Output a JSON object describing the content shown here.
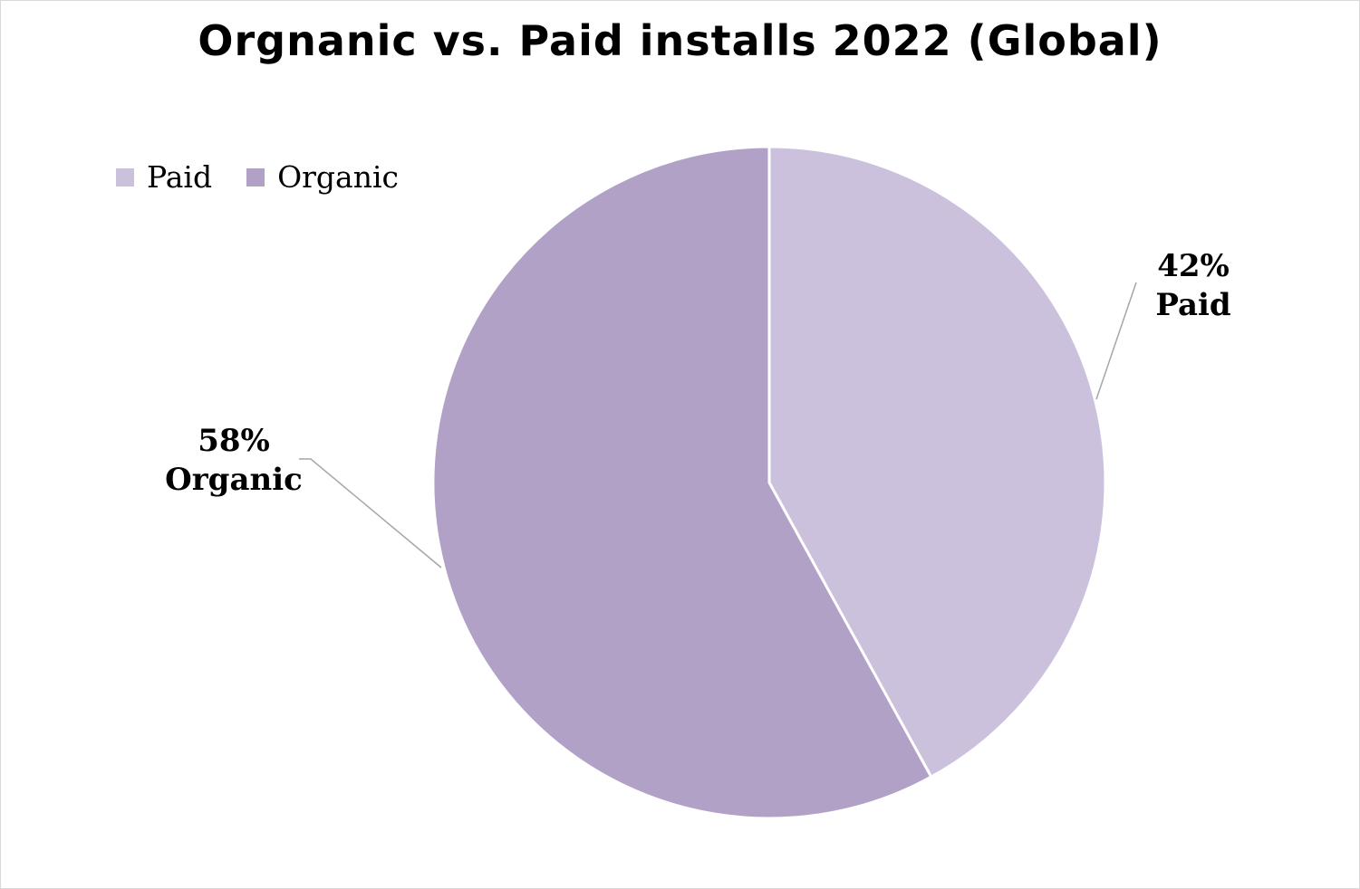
{
  "chart_data": {
    "type": "pie",
    "title": "Orgnanic vs. Paid installs 2022 (Global)",
    "slices": [
      {
        "name": "Paid",
        "value": 42,
        "label": "42%",
        "color": "#cbc1dc"
      },
      {
        "name": "Organic",
        "value": 58,
        "label": "58%",
        "color": "#b2a1c7"
      }
    ],
    "legend": {
      "position": "top-left"
    },
    "start_angle": "12 o'clock, clockwise"
  }
}
